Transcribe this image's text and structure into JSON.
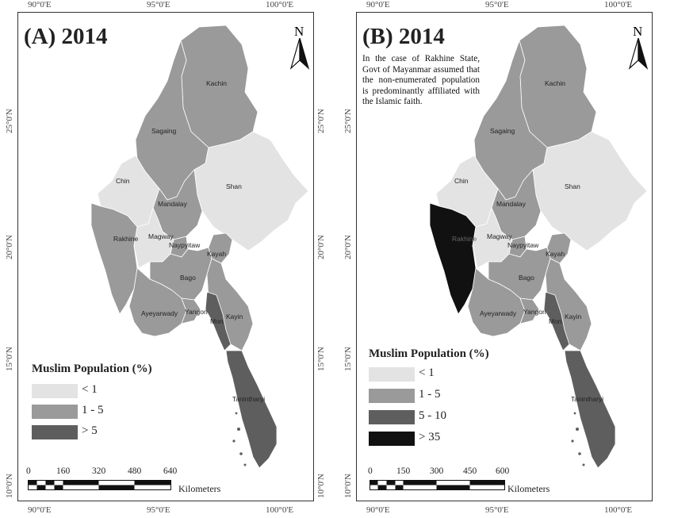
{
  "colors": {
    "lt1": "#e3e3e3",
    "c1_5": "#9a9a9a",
    "c5_10": "#5e5e5e",
    "gt35": "#111111",
    "border": "#ffffff"
  },
  "lon_ticks": [
    "90°0'E",
    "95°0'E",
    "100°0'E"
  ],
  "lat_ticks": [
    "25°0'N",
    "20°0'N",
    "15°0'N",
    "10°0'N"
  ],
  "panel_a": {
    "title": "(A) 2014",
    "north": "N",
    "regions": {
      "kachin": "Kachin",
      "sagaing": "Sagaing",
      "chin": "Chin",
      "shan": "Shan",
      "mandalay": "Mandalay",
      "rakhine": "Rakhine",
      "magway": "Magway",
      "naypyitaw": "Naypyitaw",
      "kayah": "Kayah",
      "bago": "Bago",
      "ayeyarwady": "Ayeyarwady",
      "yangon": "Yangon",
      "mon": "Mon",
      "kayin": "Kayin",
      "tanintharyi": "Tanintharyi"
    },
    "legend": {
      "title": "Muslim Population (%)",
      "items": [
        {
          "label": "< 1",
          "color": "#e3e3e3"
        },
        {
          "label": "1 - 5",
          "color": "#9a9a9a"
        },
        {
          "label": "> 5",
          "color": "#5e5e5e"
        }
      ]
    },
    "scalebar": {
      "ticks": [
        "0",
        "160",
        "320",
        "480",
        "640"
      ],
      "unit": "Kilometers"
    }
  },
  "panel_b": {
    "title": "(B) 2014",
    "north": "N",
    "note": "In the case of Rakhine State, Govt of Mayanmar assumed that the non-enumerated population is predominantly affiliated with the Islamic faith.",
    "regions": {
      "kachin": "Kachin",
      "sagaing": "Sagaing",
      "chin": "Chin",
      "shan": "Shan",
      "mandalay": "Mandalay",
      "rakhine": "Rakhine",
      "magway": "Magway",
      "naypyitaw": "Naypyitaw",
      "kayah": "Kayah",
      "bago": "Bago",
      "ayeyarwady": "Ayeyarwady",
      "yangon": "Yangon",
      "mon": "Mon",
      "kayin": "Kayin",
      "tanintharyi": "Tanintharyi"
    },
    "legend": {
      "title": "Muslim Population (%)",
      "items": [
        {
          "label": "< 1",
          "color": "#e3e3e3"
        },
        {
          "label": "1 - 5",
          "color": "#9a9a9a"
        },
        {
          "label": "5 - 10",
          "color": "#5e5e5e"
        },
        {
          "label": "> 35",
          "color": "#111111"
        }
      ]
    },
    "scalebar": {
      "ticks": [
        "0",
        "150",
        "300",
        "450",
        "600"
      ],
      "unit": "Kilometers"
    }
  }
}
